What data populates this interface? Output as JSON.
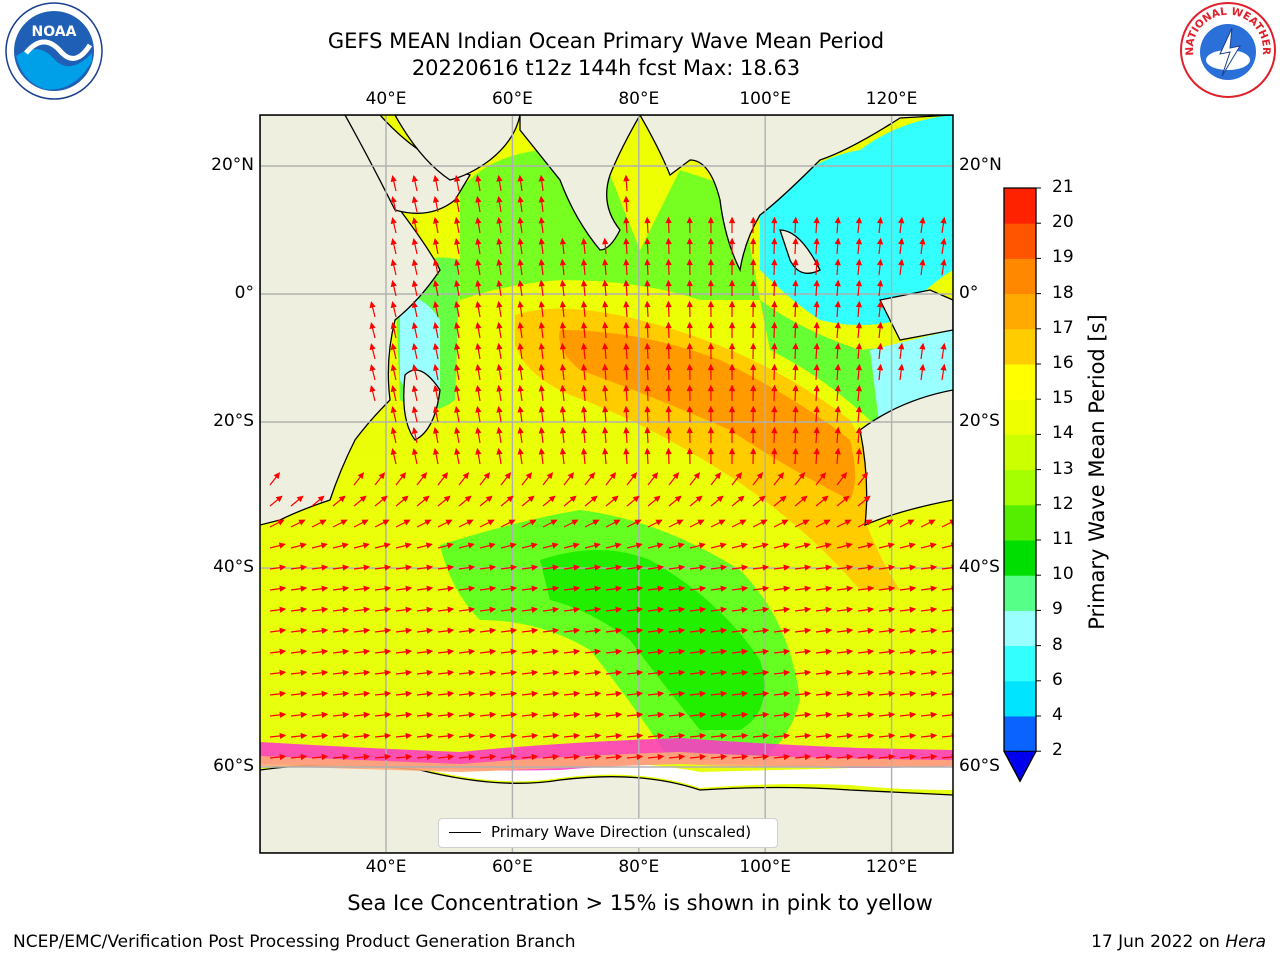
{
  "header": {
    "title_line1": "GEFS MEAN Indian Ocean Primary Wave Mean Period",
    "title_line2": "20220616 t12z 144h fcst   Max: 18.63"
  },
  "logos": {
    "left": {
      "name": "noaa-logo",
      "text": "NOAA"
    },
    "right": {
      "name": "nws-logo",
      "text": "NATIONAL WEATHER SERVICE"
    }
  },
  "map": {
    "lon_ticks": [
      "40°E",
      "60°E",
      "80°E",
      "100°E",
      "120°E"
    ],
    "lon_values": [
      40,
      60,
      80,
      100,
      120
    ],
    "lat_ticks": [
      "20°N",
      "0°",
      "20°S",
      "40°S",
      "60°S"
    ],
    "lat_values": [
      20,
      0,
      -20,
      -40,
      -60
    ],
    "legend": "Primary Wave Direction (unscaled)",
    "colors": {
      "land": "#efefdf",
      "arrow": "#ff0000",
      "grid": "#b0b0b0",
      "ice_pink": "#ff33cc"
    }
  },
  "colorbar": {
    "title": "Primary Wave Mean Period [s]",
    "labels": [
      "21",
      "20",
      "19",
      "18",
      "17",
      "16",
      "15",
      "14",
      "13",
      "12",
      "11",
      "10",
      "9",
      "8",
      "6",
      "4",
      "2"
    ],
    "levels": [
      2,
      4,
      6,
      8,
      9,
      10,
      11,
      12,
      13,
      14,
      15,
      16,
      17,
      18,
      19,
      20,
      21
    ],
    "colors": [
      "#0a62ff",
      "#00e4ff",
      "#33ffff",
      "#99ffff",
      "#55ff88",
      "#00dd00",
      "#55ee00",
      "#a6ff00",
      "#ccff00",
      "#eeff00",
      "#ffff00",
      "#ffcc00",
      "#ffaa00",
      "#ff8800",
      "#ff5500",
      "#ff2200"
    ],
    "extend_color": "#0000ee"
  },
  "subnote": "Sea Ice Concentration > 15% is shown in pink to yellow",
  "footer": {
    "left": "NCEP/EMC/Verification Post Processing Product Generation Branch",
    "right_date": "17 Jun 2022 on ",
    "right_host": "Hera"
  }
}
